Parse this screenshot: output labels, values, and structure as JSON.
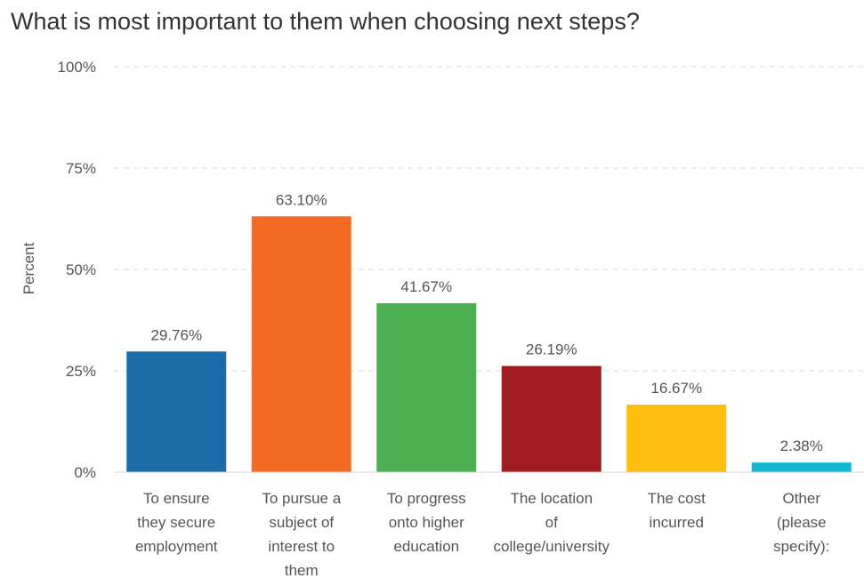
{
  "chart_data": {
    "type": "bar",
    "title": "What is most important to them when choosing next steps?",
    "ylabel": "Percent",
    "xlabel": "",
    "ylim": [
      0,
      100
    ],
    "yticks": [
      "0%",
      "25%",
      "50%",
      "75%",
      "100%"
    ],
    "grid": true,
    "categories": [
      [
        "To ensure",
        "they secure",
        "employment"
      ],
      [
        "To pursue a",
        "subject of",
        "interest to",
        "them"
      ],
      [
        "To progress",
        "onto higher",
        "education"
      ],
      [
        "The location",
        "of",
        "college/university"
      ],
      [
        "The cost",
        "incurred"
      ],
      [
        "Other",
        "(please",
        "specify):"
      ]
    ],
    "values": [
      29.76,
      63.1,
      41.67,
      26.19,
      16.67,
      2.38
    ],
    "value_labels": [
      "29.76%",
      "63.10%",
      "41.67%",
      "26.19%",
      "16.67%",
      "2.38%"
    ],
    "colors": [
      "#1a6ca8",
      "#f46b26",
      "#4caf50",
      "#a01c20",
      "#fcbf0f",
      "#12b7d4"
    ]
  }
}
